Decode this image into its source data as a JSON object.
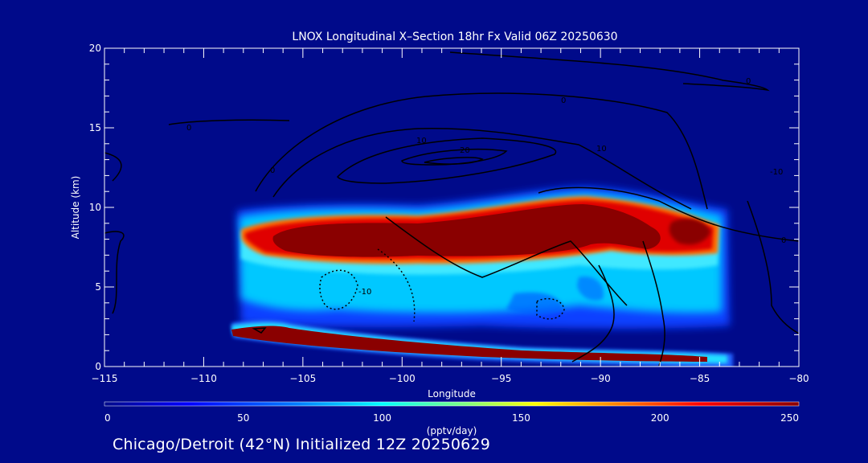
{
  "chart_data": {
    "type": "heatmap",
    "title": "LNOX Longitudinal X–Section 18hr  Fx Valid 06Z 20250630",
    "xlabel": "Longitude",
    "ylabel": "Altitude (km)",
    "xlim": [
      -115,
      -80
    ],
    "ylim": [
      0,
      20
    ],
    "x_ticks": [
      -115,
      -110,
      -105,
      -100,
      -95,
      -90,
      -85,
      -80
    ],
    "x_tick_labels": [
      "−115",
      "−110",
      "−105",
      "−100",
      "−95",
      "−90",
      "−85",
      "−80"
    ],
    "y_ticks": [
      0,
      5,
      10,
      15,
      20
    ],
    "y_tick_labels": [
      "0",
      "5",
      "10",
      "15",
      "20"
    ],
    "colorbar": {
      "label": "(pptv/day)",
      "range": [
        0,
        250
      ],
      "ticks": [
        0,
        50,
        100,
        150,
        200,
        250
      ],
      "tick_labels": [
        "0",
        "50",
        "100",
        "150",
        "200",
        "250"
      ],
      "colors": [
        "#000a8a",
        "#0000ff",
        "#00a0ff",
        "#00ffff",
        "#60ff90",
        "#ffff00",
        "#ff8000",
        "#ff0000",
        "#8a0000"
      ]
    },
    "field_description_values": {
      "upper_band_max_altitude_km": 10.5,
      "upper_band_core_altitude_km": 8,
      "lower_band_altitude_km": 1.5
    },
    "contour_labels": [
      "0",
      "10",
      "20",
      "-10"
    ],
    "background_color": "#000a8a"
  },
  "footer": {
    "text": "Chicago/Detroit (42°N) Initialized 12Z 20250629"
  }
}
